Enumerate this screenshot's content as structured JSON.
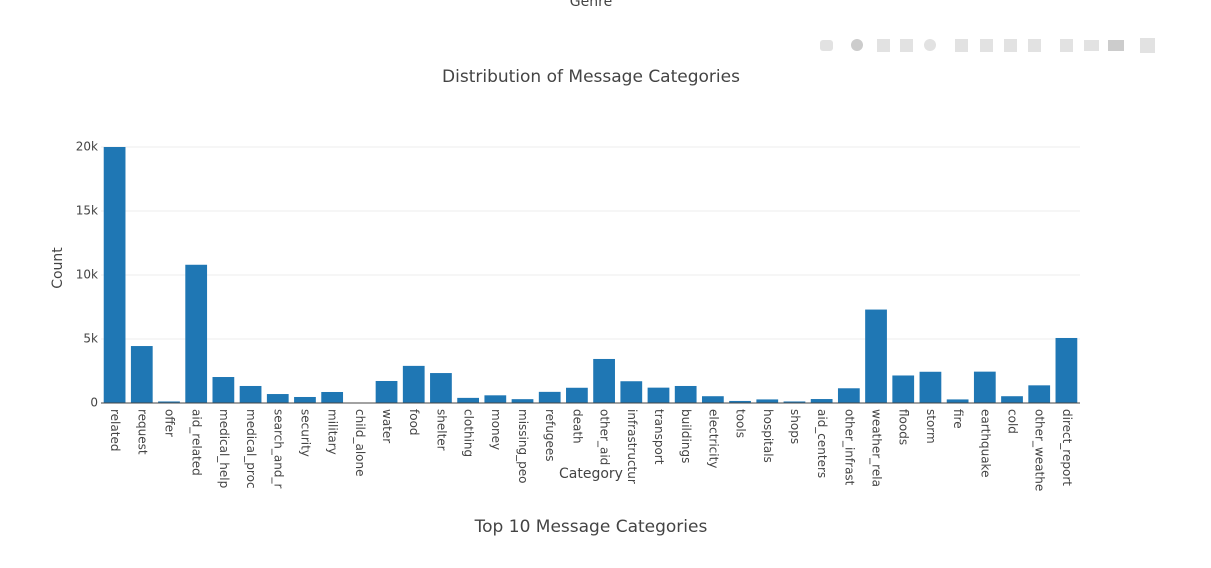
{
  "prev_axis_title": "Genre",
  "next_title": "Top 10 Message Categories",
  "chart_data": {
    "type": "bar",
    "title": "Distribution of Message Categories",
    "x_label": "Category",
    "y_label": "Count",
    "color": "#1f77b4",
    "grid": true,
    "categories": [
      "related",
      "request",
      "offer",
      "aid_related",
      "medical_help",
      "medical_proc",
      "search_and_r",
      "security",
      "military",
      "child_alone",
      "water",
      "food",
      "shelter",
      "clothing",
      "money",
      "missing_peo",
      "refugees",
      "death",
      "other_aid",
      "infrastructur",
      "transport",
      "buildings",
      "electricity",
      "tools",
      "hospitals",
      "shops",
      "aid_centers",
      "other_infrast",
      "weather_rela",
      "floods",
      "storm",
      "fire",
      "earthquake",
      "cold",
      "other_weathe",
      "direct_report"
    ],
    "values": [
      20000,
      4450,
      120,
      10800,
      2030,
      1330,
      700,
      470,
      860,
      0,
      1720,
      2900,
      2340,
      400,
      600,
      300,
      870,
      1190,
      3440,
      1700,
      1200,
      1330,
      530,
      160,
      280,
      120,
      310,
      1150,
      7300,
      2150,
      2440,
      280,
      2450,
      530,
      1380,
      5080
    ],
    "ylim": [
      0,
      21000
    ],
    "yticks": [
      0,
      {
        "value": 5000,
        "label": "5k"
      },
      {
        "value": 10000,
        "label": "10k"
      },
      {
        "value": 15000,
        "label": "15k"
      },
      {
        "value": 20000,
        "label": "20k"
      }
    ]
  }
}
